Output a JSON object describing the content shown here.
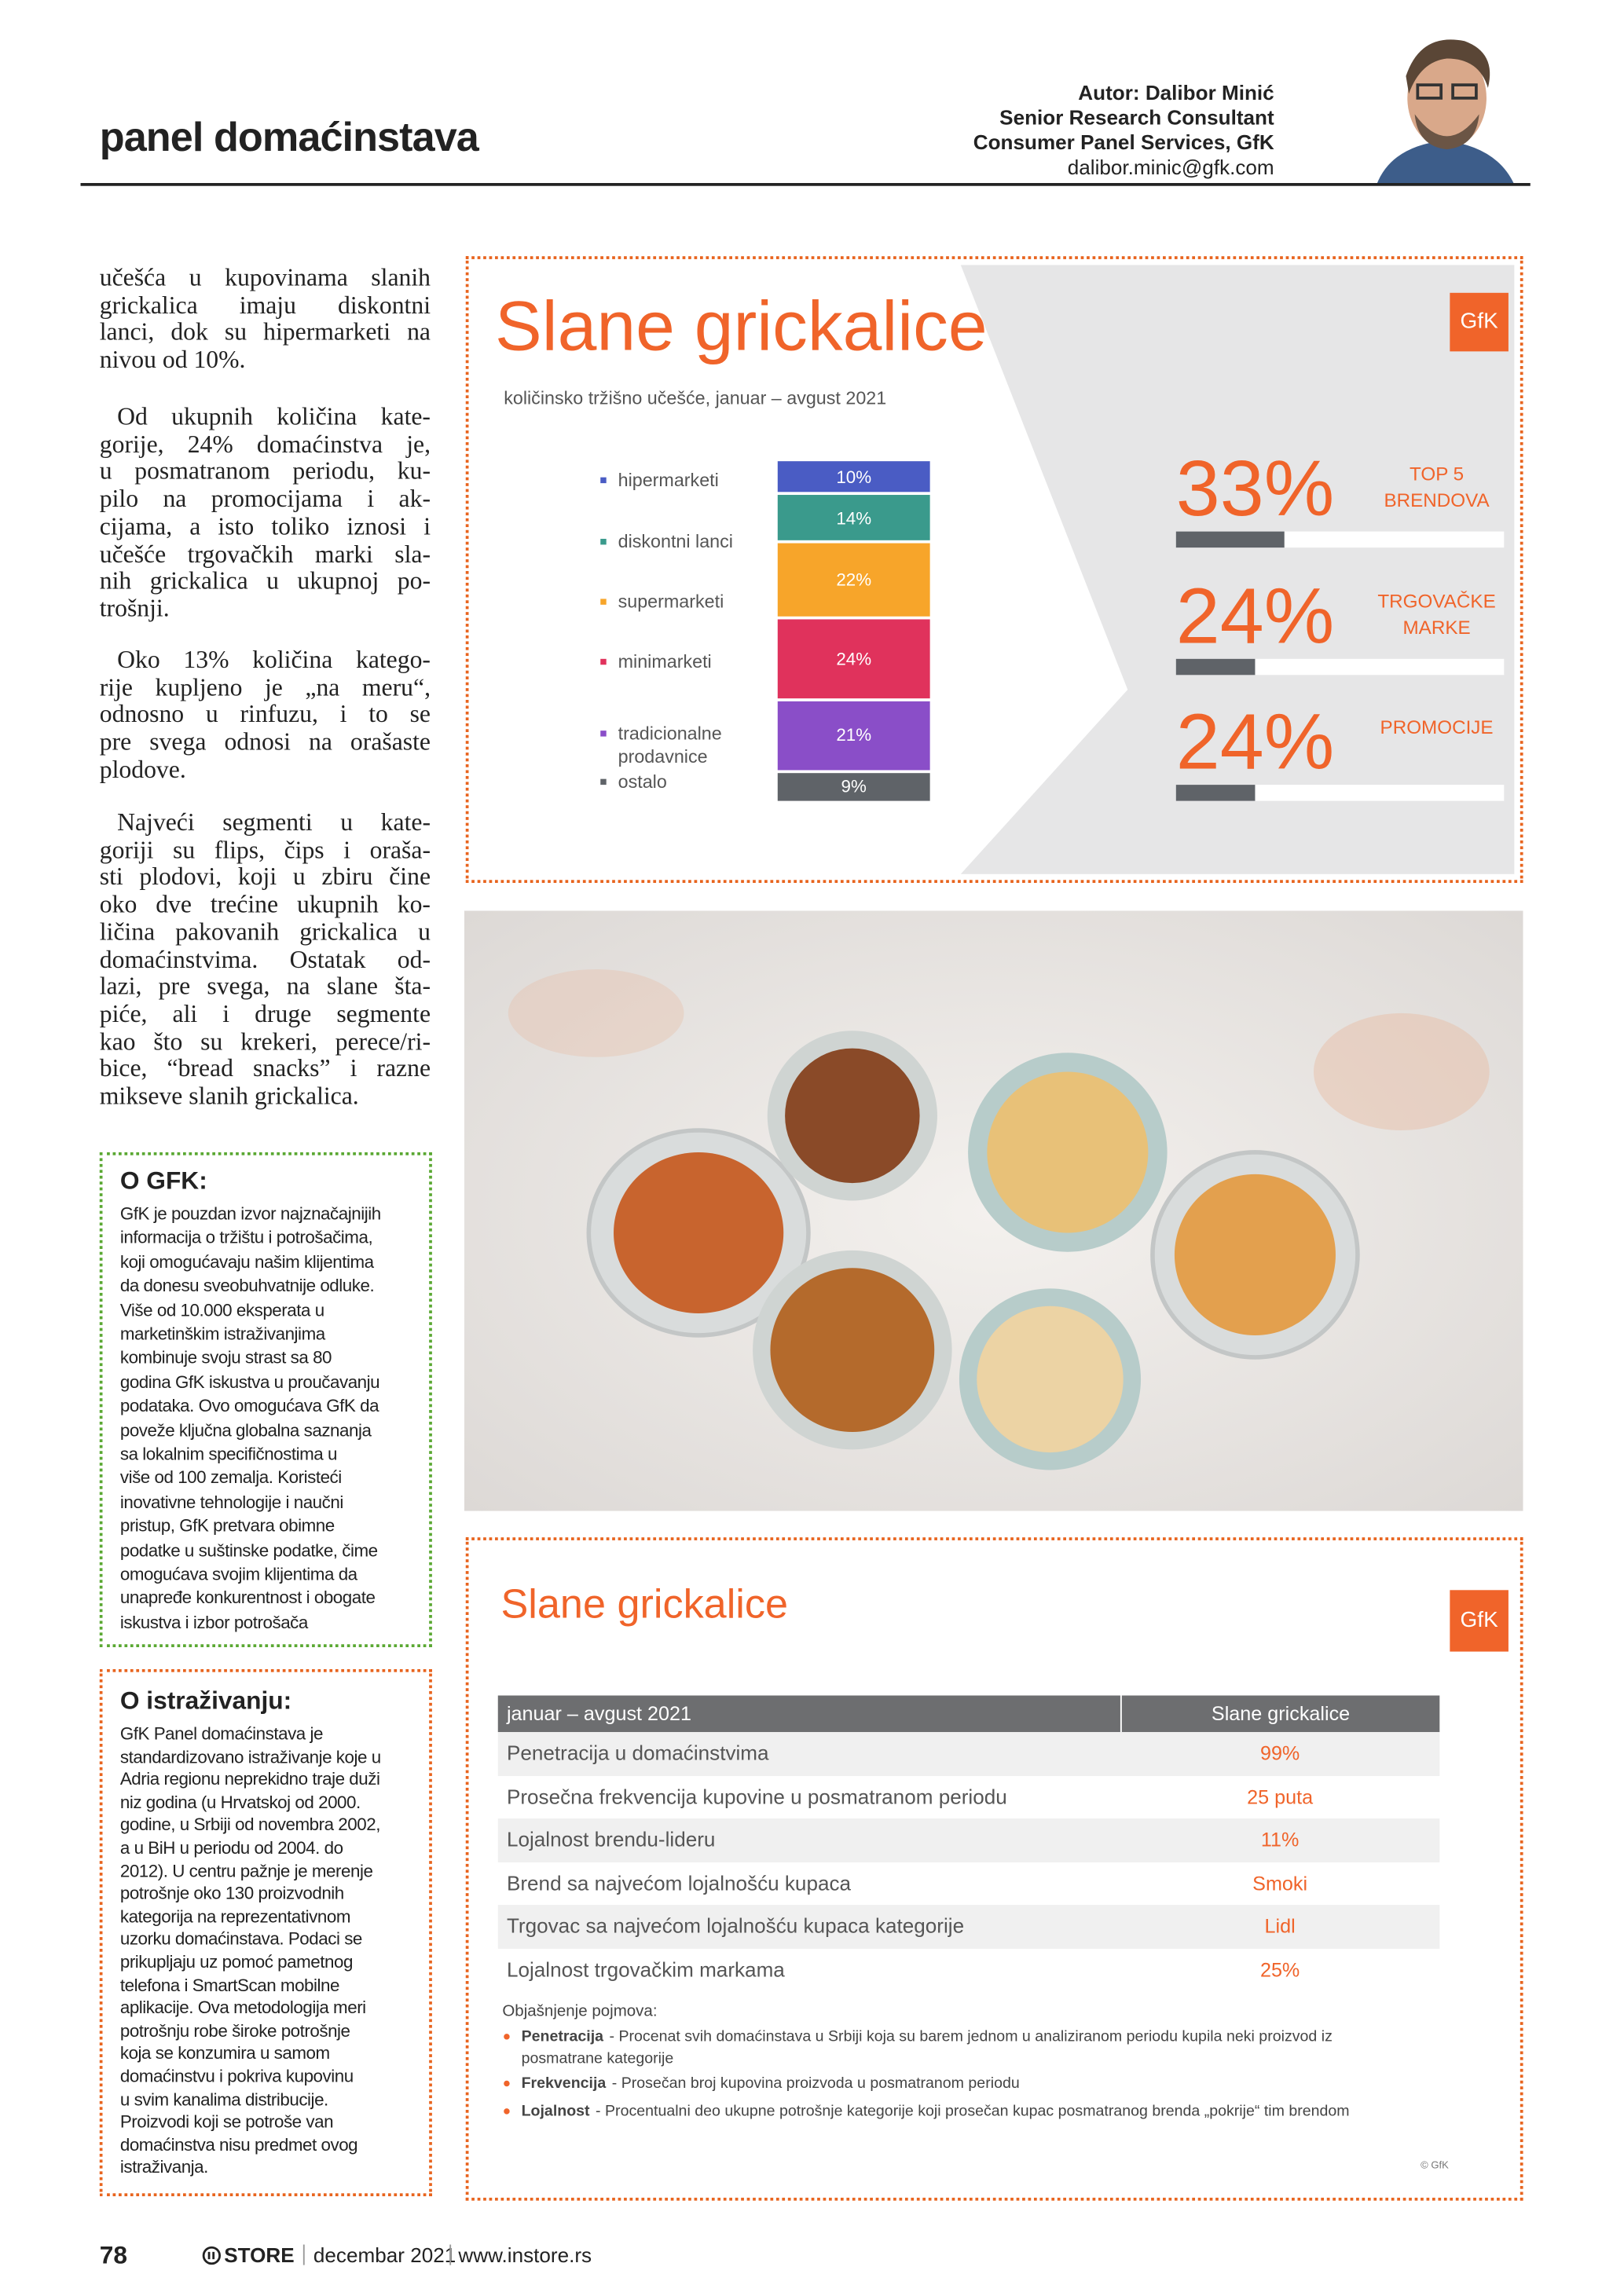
{
  "header": {
    "section": "panel domaćinstava",
    "author": "Autor: Dalibor Minić",
    "role": "Senior Research Consultant",
    "unit": "Consumer Panel Services, GfK",
    "email": "dalibor.minic@gfk.com"
  },
  "article": {
    "paragraphs": [
      [
        "učešća u kupovinama slanih",
        "grickalica imaju diskontni",
        "lanci, dok su hipermarketi na",
        "nivou od 10%."
      ],
      [
        "Od ukupnih količina kate-",
        "gorije, 24% domaćinstva je,",
        "u posmatranom periodu, ku-",
        "pilo na promocijama i ak-",
        "cijama, a isto toliko iznosi i",
        "učešće trgovačkih marki sla-",
        "nih grickalica u ukupnoj po-",
        "trošnji."
      ],
      [
        "Oko 13% količina katego-",
        "rije kupljeno je „na meru“,",
        "odnosno u rinfuzu, i to se",
        "pre svega odnosi na orašaste",
        "plodove."
      ],
      [
        "Najveći segmenti u kate-",
        "goriji su flips, čips i oraša-",
        "sti plodovi, koji u zbiru čine",
        "oko dve trećine ukupnih ko-",
        "ličina pakovanih grickalica u",
        "domaćinstvima. Ostatak od-",
        "lazi, pre svega, na slane šta-",
        "piće, ali i druge segmente",
        "kao što su krekeri, perece/ri-",
        "bice, “bread snacks” i razne",
        "mikseve slanih grickalica."
      ]
    ]
  },
  "gfk_box": {
    "title": "O GFK:",
    "lines": [
      "GfK je pouzdan izvor najznačajnijih",
      "informacija o tržištu i potrošačima,",
      "koji omogućavaju našim klijentima",
      "da donesu sveobuhvatnije odluke.",
      "Više od 10.000 eksperata u",
      "marketinškim istraživanjima",
      "kombinuje svoju strast sa 80",
      "godina GfK iskustva u proučavanju",
      "podataka. Ovo omogućava GfK da",
      "poveže ključna globalna saznanja",
      "sa lokalnim specifičnostima u",
      "više od 100 zemalja. Koristeći",
      "inovativne tehnologije i naučni",
      "pristup, GfK pretvara obimne",
      "podatke u suštinske podatke, čime",
      "omogućava svojim klijentima da",
      "unapređe konkurentnost i obogate",
      "iskustva i izbor potrošača"
    ]
  },
  "research_box": {
    "title": "O istraživanju:",
    "lines": [
      "GfK Panel domaćinstava je",
      "standardizovano istraživanje koje u",
      "Adria regionu neprekidno traje duži",
      "niz godina (u Hrvatskoj od 2000.",
      "godine, u Srbiji od novembra 2002,",
      "a u BiH u periodu od 2004. do",
      "2012). U centru pažnje je merenje",
      "potrošnje oko 130 proizvodnih",
      "kategorija na reprezentativnom",
      "uzorku domaćinstava. Podaci se",
      "prikupljaju uz pomoć pametnog",
      "telefona i SmartScan mobilne",
      "aplikacije. Ova metodologija meri",
      "potrošnju robe široke potrošnje",
      "koja se konzumira u samom",
      "domaćinstvu i pokriva kupovinu",
      "u svim kanalima distribucije.",
      "Proizvodi koji se potroše van",
      "domaćinstva nisu predmet ovog",
      "istraživanja."
    ]
  },
  "chart_data": {
    "type": "stacked-bar",
    "title": "Slane grickalice",
    "subtitle": "količinsko tržišno učešće, januar – avgust 2021",
    "logo": "GfK",
    "categories": [
      "hipermarketi",
      "diskontni lanci",
      "supermarketi",
      "minimarketi",
      "tradicionalne prodavnice",
      "ostalo"
    ],
    "values": [
      10,
      14,
      22,
      24,
      21,
      9
    ],
    "value_labels": [
      "10%",
      "14%",
      "22%",
      "24%",
      "21%",
      "9%"
    ],
    "colors": [
      "#4a5cc4",
      "#3a9a8c",
      "#f7a52a",
      "#e0325c",
      "#8a4ec8",
      "#5f6368"
    ]
  },
  "kpis": {
    "values": [
      33,
      24,
      24
    ],
    "value_labels": [
      "33%",
      "24%",
      "24%"
    ],
    "labels": [
      "TOP 5 BRENDOVA",
      "TRGOVAČKE MARKE",
      "PROMOCIJE"
    ]
  },
  "table": {
    "title": "Slane grickalice",
    "logo": "GfK",
    "header": [
      "januar – avgust 2021",
      "Slane grickalice"
    ],
    "rows": [
      [
        "Penetracija u domaćinstvima",
        "99%"
      ],
      [
        "Prosečna frekvencija kupovine u posmatranom periodu",
        "25 puta"
      ],
      [
        "Lojalnost brendu-lideru",
        "11%"
      ],
      [
        "Brend sa najvećom lojalnošću kupaca",
        "Smoki"
      ],
      [
        "Trgovac sa najvećom lojalnošću kupaca kategorije",
        "Lidl"
      ],
      [
        "Lojalnost trgovačkim markama",
        "25%"
      ]
    ],
    "notes_title": "Objašnjenje pojmova:",
    "notes": [
      {
        "term": "Penetracija",
        "text": "- Procenat svih domaćinstava u Srbiji koja su barem jednom u analiziranom periodu kupila neki proizvod iz posmatrane kategorije"
      },
      {
        "term": "Frekvencija",
        "text": "- Prosečan broj kupovina proizvoda u posmatranom periodu"
      },
      {
        "term": "Lojalnost",
        "text": "- Procentualni deo ukupne potrošnje kategorije koji prosečan kupac posmatranog brenda „pokrije“ tim brendom"
      }
    ],
    "copyright": "© GfK"
  },
  "footer": {
    "page": "78",
    "brand": "STORE",
    "issue": "decembar 2021",
    "url": "www.instore.rs"
  }
}
